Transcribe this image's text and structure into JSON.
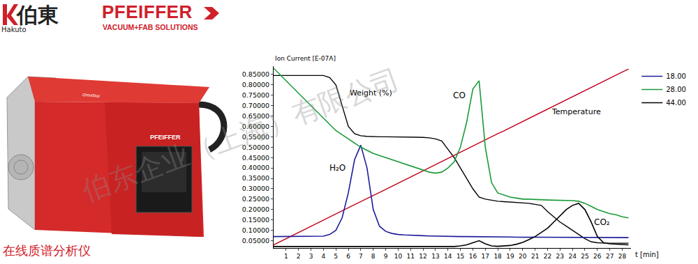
{
  "chart_data": {
    "type": "line",
    "y_label": "Ion Current [E-07A]",
    "x_label": "t [min]",
    "grid": false,
    "legend": "right",
    "x": [
      0,
      0.5,
      1,
      1.5,
      2,
      2.5,
      3,
      3.5,
      4,
      4.5,
      5,
      5.5,
      6,
      6.5,
      7,
      7.5,
      8,
      8.5,
      9,
      9.5,
      10,
      10.5,
      11,
      11.5,
      12,
      12.5,
      13,
      13.5,
      14,
      14.5,
      15,
      15.5,
      16,
      16.5,
      17,
      17.5,
      18,
      18.5,
      19,
      19.5,
      20,
      20.5,
      21,
      21.5,
      22,
      22.5,
      23,
      23.5,
      24,
      24.5,
      25,
      25.5,
      26,
      26.5,
      27,
      27.5,
      28,
      28.5
    ],
    "xlim": [
      0,
      28.7
    ],
    "xticks": [
      1,
      2,
      3,
      4,
      5,
      6,
      7,
      8,
      9,
      10,
      11,
      12,
      13,
      14,
      15,
      16,
      17,
      18,
      19,
      20,
      21,
      22,
      23,
      24,
      25,
      26,
      27,
      28
    ],
    "ylim": [
      0.015,
      0.89
    ],
    "yticks": [
      {
        "value": 0.05,
        "label": "0.05000"
      },
      {
        "value": 0.1,
        "label": "0.10000"
      },
      {
        "value": 0.15,
        "label": "0.15000"
      },
      {
        "value": 0.2,
        "label": "0.20000"
      },
      {
        "value": 0.25,
        "label": "0.25000"
      },
      {
        "value": 0.3,
        "label": "0.30000"
      },
      {
        "value": 0.35,
        "label": "0.35000"
      },
      {
        "value": 0.4,
        "label": "0.40000"
      },
      {
        "value": 0.45,
        "label": "0.45000"
      },
      {
        "value": 0.5,
        "label": "0.50000"
      },
      {
        "value": 0.55,
        "label": "0.55000"
      },
      {
        "value": 0.6,
        "label": "0.60000"
      },
      {
        "value": 0.65,
        "label": "0.65000"
      },
      {
        "value": 0.7,
        "label": "0.70000"
      },
      {
        "value": 0.75,
        "label": "0.75000"
      },
      {
        "value": 0.8,
        "label": "0.80000"
      },
      {
        "value": 0.85,
        "label": "0.85000"
      }
    ],
    "series": [
      {
        "name": "18.00",
        "color": "#1c1c9c",
        "values": [
          0.07,
          0.07,
          0.07,
          0.07,
          0.07,
          0.07,
          0.07,
          0.07,
          0.072,
          0.08,
          0.1,
          0.16,
          0.28,
          0.44,
          0.51,
          0.4,
          0.2,
          0.12,
          0.095,
          0.085,
          0.08,
          0.078,
          0.076,
          0.075,
          0.074,
          0.073,
          0.072,
          0.072,
          0.071,
          0.071,
          0.07,
          0.07,
          0.07,
          0.07,
          0.069,
          0.069,
          0.068,
          0.068,
          0.068,
          0.067,
          0.067,
          0.067,
          0.067,
          0.066,
          0.066,
          0.066,
          0.066,
          0.066,
          0.066,
          0.065,
          0.065,
          0.065,
          0.065,
          0.065,
          0.065,
          0.065,
          0.065,
          0.065
        ]
      },
      {
        "name": "28.00",
        "color": "#1a9a3a",
        "values": [
          0.88,
          0.85,
          0.82,
          0.79,
          0.76,
          0.73,
          0.7,
          0.67,
          0.64,
          0.61,
          0.58,
          0.56,
          0.54,
          0.52,
          0.5,
          0.485,
          0.47,
          0.46,
          0.45,
          0.44,
          0.43,
          0.42,
          0.41,
          0.4,
          0.39,
          0.38,
          0.375,
          0.38,
          0.4,
          0.43,
          0.5,
          0.62,
          0.78,
          0.82,
          0.5,
          0.33,
          0.28,
          0.27,
          0.26,
          0.255,
          0.25,
          0.25,
          0.248,
          0.247,
          0.246,
          0.245,
          0.245,
          0.245,
          0.243,
          0.24,
          0.23,
          0.215,
          0.2,
          0.19,
          0.18,
          0.175,
          0.165,
          0.16
        ]
      },
      {
        "name": "44.00",
        "color": "#000000",
        "values": [
          0.022,
          0.022,
          0.022,
          0.022,
          0.022,
          0.022,
          0.022,
          0.022,
          0.022,
          0.022,
          0.022,
          0.022,
          0.022,
          0.022,
          0.022,
          0.022,
          0.022,
          0.022,
          0.022,
          0.022,
          0.022,
          0.022,
          0.022,
          0.022,
          0.022,
          0.022,
          0.022,
          0.022,
          0.022,
          0.022,
          0.025,
          0.03,
          0.04,
          0.05,
          0.035,
          0.025,
          0.023,
          0.024,
          0.027,
          0.033,
          0.042,
          0.055,
          0.07,
          0.09,
          0.11,
          0.14,
          0.17,
          0.2,
          0.22,
          0.23,
          0.2,
          0.14,
          0.07,
          0.04,
          0.035,
          0.033,
          0.03,
          0.03
        ]
      }
    ],
    "curves": [
      {
        "name": "Weight (%)",
        "color": "#000000",
        "label_x": 6.0,
        "label_y": 0.76,
        "values": [
          0.845,
          0.845,
          0.845,
          0.845,
          0.845,
          0.845,
          0.845,
          0.845,
          0.845,
          0.835,
          0.8,
          0.7,
          0.6,
          0.565,
          0.555,
          0.552,
          0.55,
          0.55,
          0.55,
          0.55,
          0.55,
          0.55,
          0.548,
          0.548,
          0.547,
          0.545,
          0.54,
          0.53,
          0.49,
          0.45,
          0.4,
          0.35,
          0.3,
          0.26,
          0.25,
          0.245,
          0.24,
          0.238,
          0.236,
          0.235,
          0.233,
          0.23,
          0.225,
          0.22,
          0.19,
          0.165,
          0.14,
          0.12,
          0.1,
          0.08,
          0.06,
          0.045,
          0.04,
          0.039,
          0.038,
          0.038,
          0.038,
          0.038
        ]
      },
      {
        "name": "Temperature",
        "color": "#c0001a",
        "label_x": 22.2,
        "label_y": 0.67,
        "values": [
          0.03,
          0.045,
          0.06,
          0.075,
          0.089,
          0.104,
          0.119,
          0.134,
          0.149,
          0.164,
          0.179,
          0.193,
          0.208,
          0.223,
          0.238,
          0.253,
          0.268,
          0.282,
          0.297,
          0.312,
          0.327,
          0.342,
          0.357,
          0.372,
          0.386,
          0.401,
          0.416,
          0.431,
          0.446,
          0.461,
          0.476,
          0.49,
          0.505,
          0.52,
          0.535,
          0.55,
          0.565,
          0.579,
          0.594,
          0.609,
          0.624,
          0.639,
          0.654,
          0.669,
          0.683,
          0.698,
          0.713,
          0.728,
          0.743,
          0.758,
          0.773,
          0.787,
          0.802,
          0.817,
          0.832,
          0.847,
          0.862,
          0.876
        ]
      }
    ],
    "annotations": [
      {
        "text": "CO",
        "x": 14.3,
        "y": 0.75
      },
      {
        "text": "H₂O",
        "x": 4.4,
        "y": 0.4
      },
      {
        "text": "CO₂",
        "x": 25.6,
        "y": 0.14
      }
    ]
  },
  "page": {
    "logo_cn": "伯東",
    "logo_en": "Hakuto",
    "brand": "PFEIFFER",
    "brand_sub": "VACUUM+FAB SOLUTIONS",
    "device_texts": [
      "OmniStar",
      "PFEIFFER"
    ],
    "caption": "在线质谱分析仪",
    "watermark": "伯东企业（上海）有限公司"
  }
}
